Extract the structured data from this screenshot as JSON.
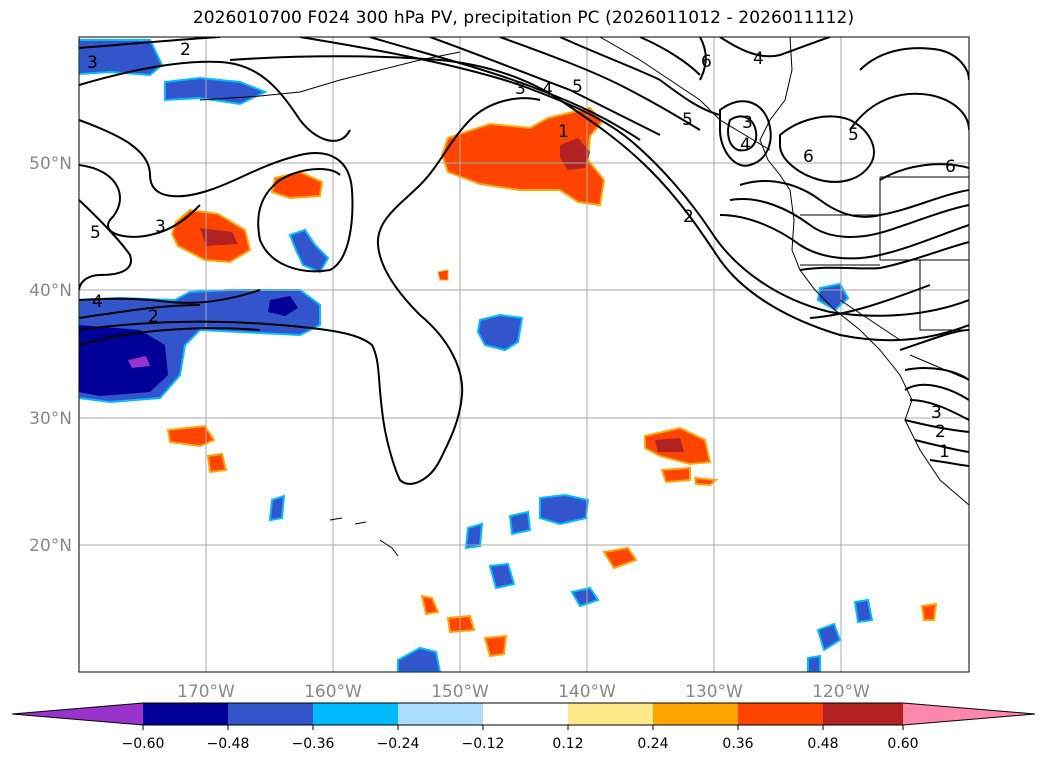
{
  "title": "2026010700 F024 300 hPa PV, precipitation PC (2026011012 - 2026011112)",
  "lat_labels": [
    "50°N",
    "40°N",
    "30°N",
    "20°N"
  ],
  "lon_labels": [
    "170°W",
    "160°W",
    "150°W",
    "140°W",
    "130°W",
    "120°W"
  ],
  "colorbar": {
    "colors": [
      "#9933cc",
      "#000099",
      "#3355cc",
      "#00bbff",
      "#aaddff",
      "#ffffff",
      "#ffe88a",
      "#ffa500",
      "#ff4400",
      "#b22222",
      "#ff88aa"
    ],
    "tick_labels": [
      "−0.60",
      "−0.48",
      "−0.36",
      "−0.24",
      "−0.12",
      "0.12",
      "0.24",
      "0.36",
      "0.48",
      "0.60"
    ]
  },
  "contour_labels": [
    "3",
    "2",
    "3",
    "5",
    "4",
    "2",
    "4",
    "5",
    "1",
    "3",
    "4",
    "5",
    "2",
    "6",
    "4",
    "3",
    "6",
    "5",
    "6",
    "3",
    "2",
    "1"
  ]
}
